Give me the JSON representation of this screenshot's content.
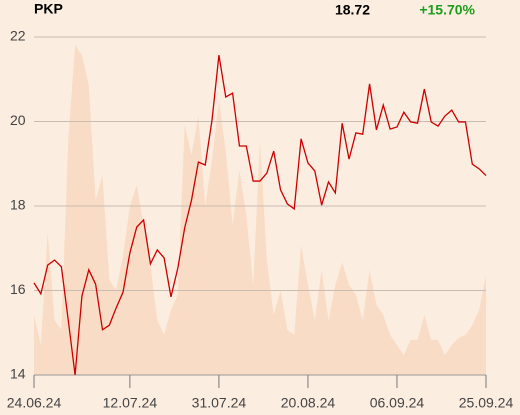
{
  "chart_data": {
    "type": "line",
    "title": "PKP",
    "price": "18.72",
    "change": "+15.70%",
    "change_color": "#1a9e1a",
    "categories": [
      "24.06.24",
      null,
      null,
      null,
      null,
      null,
      null,
      null,
      null,
      null,
      null,
      null,
      null,
      null,
      "12.07.24",
      null,
      null,
      null,
      null,
      null,
      null,
      null,
      null,
      null,
      null,
      null,
      null,
      "31.07.24",
      null,
      null,
      null,
      null,
      null,
      null,
      null,
      null,
      null,
      null,
      null,
      null,
      "20.08.24",
      null,
      null,
      null,
      null,
      null,
      null,
      null,
      null,
      null,
      null,
      null,
      null,
      "06.09.24",
      null,
      null,
      null,
      null,
      null,
      null,
      null,
      null,
      null,
      null,
      null,
      null,
      "25.09.24"
    ],
    "series": [
      {
        "color": "#cc0000",
        "values": [
          16.18,
          15.92,
          16.6,
          16.72,
          16.56,
          15.3,
          14.0,
          15.87,
          16.49,
          16.15,
          15.07,
          15.18,
          15.59,
          15.96,
          16.89,
          17.5,
          17.67,
          16.63,
          16.96,
          16.77,
          15.85,
          16.53,
          17.48,
          18.14,
          19.04,
          18.97,
          20.04,
          21.57,
          20.58,
          20.67,
          19.42,
          19.42,
          18.59,
          18.59,
          18.78,
          19.3,
          18.38,
          18.05,
          17.93,
          19.59,
          19.02,
          18.83,
          18.02,
          18.57,
          18.31,
          19.96,
          19.11,
          19.73,
          19.7,
          20.89,
          19.8,
          20.39,
          19.82,
          19.87,
          20.22,
          19.99,
          19.96,
          20.77,
          19.99,
          19.89,
          20.13,
          20.27,
          19.99,
          19.99,
          18.99,
          18.88,
          18.72
        ]
      }
    ],
    "area": {
      "color": "#f9dcc5",
      "values": [
        15.42,
        14.71,
        17.38,
        15.3,
        15.07,
        19.56,
        21.81,
        21.57,
        20.86,
        18.14,
        18.73,
        16.25,
        16.01,
        16.84,
        17.99,
        18.5,
        17.55,
        16.6,
        15.3,
        14.95,
        15.54,
        15.9,
        19.92,
        19.21,
        20.15,
        18.0,
        19.1,
        20.5,
        19.3,
        17.55,
        18.85,
        17.79,
        16.13,
        19.56,
        16.72,
        15.42,
        16.01,
        15.07,
        14.95,
        17.08,
        16.13,
        15.3,
        16.49,
        15.3,
        16.13,
        16.67,
        16.13,
        15.9,
        15.3,
        16.49,
        15.66,
        15.42,
        14.95,
        14.71,
        14.47,
        14.83,
        14.83,
        15.42,
        14.83,
        14.83,
        14.47,
        14.71,
        14.88,
        14.95,
        15.18,
        15.54,
        16.37
      ]
    },
    "ylim": [
      14,
      22
    ],
    "yticks": [
      14,
      16,
      18,
      20,
      22
    ],
    "grid": true
  }
}
